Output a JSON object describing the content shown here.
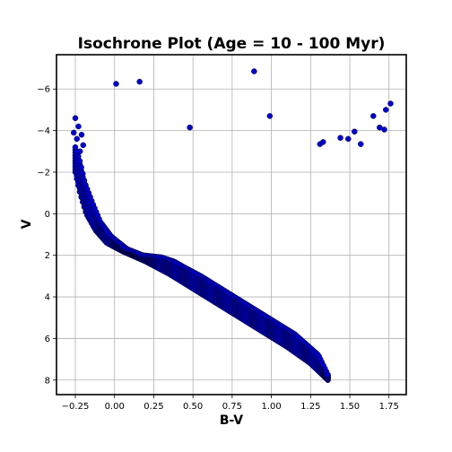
{
  "chart_data": {
    "type": "scatter",
    "title": "Isochrone Plot (Age = 10 - 100 Myr)",
    "xlabel": "B-V",
    "ylabel": "V",
    "xlim": [
      -0.37,
      1.86
    ],
    "ylim": [
      8.7,
      -7.65
    ],
    "y_inverted": true,
    "grid": true,
    "marker_color": "#0000cc",
    "marker_edge": "#000033",
    "x_ticks": [
      -0.25,
      0.0,
      0.25,
      0.5,
      0.75,
      1.0,
      1.25,
      1.5,
      1.75
    ],
    "x_tick_labels": [
      "−0.25",
      "0.00",
      "0.25",
      "0.50",
      "0.75",
      "1.00",
      "1.25",
      "1.50",
      "1.75"
    ],
    "y_ticks": [
      -6,
      -4,
      -2,
      0,
      2,
      4,
      6,
      8
    ],
    "y_tick_labels": [
      "−6",
      "−4",
      "−2",
      "0",
      "2",
      "4",
      "6",
      "8"
    ],
    "series": [
      {
        "main_sequence_lower_edge": [
          [
            -0.26,
            -2.6
          ],
          [
            -0.25,
            -2.0
          ],
          [
            -0.22,
            -1.0
          ],
          [
            -0.18,
            0.0
          ],
          [
            -0.12,
            0.8
          ],
          [
            -0.05,
            1.4
          ],
          [
            0.05,
            1.8
          ],
          [
            0.2,
            2.3
          ],
          [
            0.35,
            2.9
          ],
          [
            0.5,
            3.6
          ],
          [
            0.65,
            4.3
          ],
          [
            0.8,
            5.0
          ],
          [
            0.95,
            5.7
          ],
          [
            1.1,
            6.4
          ],
          [
            1.25,
            7.2
          ],
          [
            1.36,
            8.0
          ]
        ],
        "main_sequence_upper_edge": [
          [
            -0.25,
            -3.2
          ],
          [
            -0.22,
            -2.5
          ],
          [
            -0.19,
            -1.5
          ],
          [
            -0.14,
            -0.5
          ],
          [
            -0.09,
            0.4
          ],
          [
            -0.02,
            1.1
          ],
          [
            0.08,
            1.7
          ],
          [
            0.18,
            2.0
          ],
          [
            0.3,
            2.1
          ],
          [
            0.38,
            2.3
          ],
          [
            0.45,
            2.6
          ],
          [
            0.55,
            3.0
          ],
          [
            0.7,
            3.7
          ],
          [
            0.85,
            4.4
          ],
          [
            1.0,
            5.1
          ],
          [
            1.15,
            5.8
          ],
          [
            1.3,
            6.8
          ],
          [
            1.37,
            7.9
          ]
        ],
        "upper_tail": [
          [
            -0.26,
            -3.9
          ],
          [
            -0.25,
            -4.6
          ],
          [
            -0.23,
            -4.2
          ],
          [
            -0.21,
            -3.8
          ],
          [
            -0.2,
            -3.3
          ],
          [
            -0.24,
            -3.6
          ],
          [
            -0.22,
            -3.0
          ]
        ],
        "outliers": [
          [
            0.01,
            -6.25
          ],
          [
            0.16,
            -6.35
          ],
          [
            0.48,
            -4.15
          ],
          [
            0.89,
            -6.85
          ],
          [
            0.99,
            -4.7
          ],
          [
            1.31,
            -3.35
          ],
          [
            1.33,
            -3.45
          ],
          [
            1.44,
            -3.65
          ],
          [
            1.49,
            -3.6
          ],
          [
            1.53,
            -3.95
          ],
          [
            1.57,
            -3.35
          ],
          [
            1.65,
            -4.7
          ],
          [
            1.69,
            -4.15
          ],
          [
            1.72,
            -4.05
          ],
          [
            1.73,
            -5.0
          ],
          [
            1.76,
            -5.3
          ]
        ]
      }
    ]
  }
}
